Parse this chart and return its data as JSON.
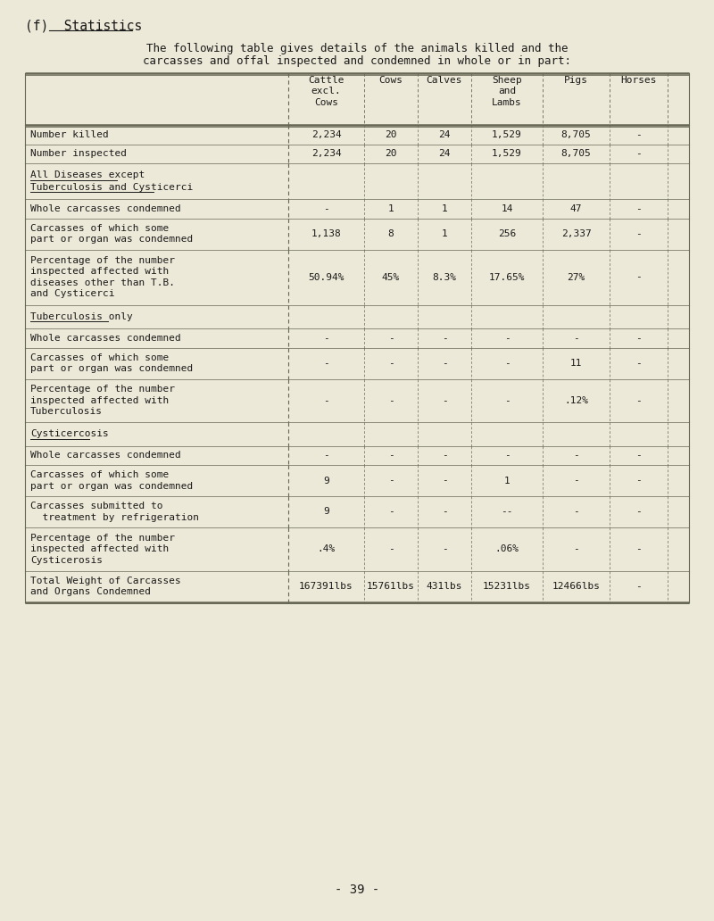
{
  "bg_color": "#ede9d8",
  "title_label": "(f)  Statistics",
  "subtitle_line1": "The following table gives details of the animals killed and the",
  "subtitle_line2": "carcasses and offal inspected and condemned in whole or in part:",
  "col_headers": [
    "Cattle\nexcl.\nCows",
    "Cows",
    "Calves",
    "Sheep\nand\nLambs",
    "Pigs",
    "Horses"
  ],
  "rows": [
    {
      "label": "Number killed",
      "nlines": 1,
      "underline": false,
      "section": false,
      "values": [
        "2,234",
        "20",
        "24",
        "1,529",
        "8,705",
        "-"
      ]
    },
    {
      "label": "Number inspected",
      "nlines": 1,
      "underline": false,
      "section": false,
      "values": [
        "2,234",
        "20",
        "24",
        "1,529",
        "8,705",
        "-"
      ]
    },
    {
      "label": "All Diseases except\nTuberculosis and Cysticerci",
      "nlines": 2,
      "underline": true,
      "section": true,
      "values": [
        "",
        "",
        "",
        "",
        "",
        ""
      ]
    },
    {
      "label": "Whole carcasses condemned",
      "nlines": 1,
      "underline": false,
      "section": false,
      "values": [
        "-",
        "1",
        "1",
        "14",
        "47",
        "-"
      ]
    },
    {
      "label": "Carcasses of which some\npart or organ was condemned",
      "nlines": 2,
      "underline": false,
      "section": false,
      "values": [
        "1,138",
        "8",
        "1",
        "256",
        "2,337",
        "-"
      ]
    },
    {
      "label": "Percentage of the number\ninspected affected with\ndiseases other than T.B.\nand Cysticerci",
      "nlines": 4,
      "underline": false,
      "section": false,
      "values": [
        "50.94%",
        "45%",
        "8.3%",
        "17.65%",
        "27%",
        "-"
      ]
    },
    {
      "label": "Tuberculosis only",
      "nlines": 1,
      "underline": true,
      "section": true,
      "values": [
        "",
        "",
        "",
        "",
        "",
        ""
      ]
    },
    {
      "label": "Whole carcasses condemned",
      "nlines": 1,
      "underline": false,
      "section": false,
      "values": [
        "-",
        "-",
        "-",
        "-",
        "-",
        "-"
      ]
    },
    {
      "label": "Carcasses of which some\npart or organ was condemned",
      "nlines": 2,
      "underline": false,
      "section": false,
      "values": [
        "-",
        "-",
        "-",
        "-",
        "11",
        "-"
      ]
    },
    {
      "label": "Percentage of the number\ninspected affected with\nTuberculosis",
      "nlines": 3,
      "underline": false,
      "section": false,
      "values": [
        "-",
        "-",
        "-",
        "-",
        ".12%",
        "-"
      ]
    },
    {
      "label": "Cysticercosis",
      "nlines": 1,
      "underline": true,
      "section": true,
      "values": [
        "",
        "",
        "",
        "",
        "",
        ""
      ]
    },
    {
      "label": "Whole carcasses condemned",
      "nlines": 1,
      "underline": false,
      "section": false,
      "values": [
        "-",
        "-",
        "-",
        "-",
        "-",
        "-"
      ]
    },
    {
      "label": "Carcasses of which some\npart or organ was condemned",
      "nlines": 2,
      "underline": false,
      "section": false,
      "values": [
        "9",
        "-",
        "-",
        "1",
        "-",
        "-"
      ]
    },
    {
      "label": "Carcasses submitted to\n  treatment by refrigeration",
      "nlines": 2,
      "underline": false,
      "section": false,
      "values": [
        "9",
        "-",
        "-",
        "--",
        "-",
        "-"
      ]
    },
    {
      "label": "Percentage of the number\ninspected affected with\nCysticerosis",
      "nlines": 3,
      "underline": false,
      "section": false,
      "values": [
        ".4%",
        "-",
        "-",
        ".06%",
        "-",
        "-"
      ]
    },
    {
      "label": "Total Weight of Carcasses\nand Organs Condemned",
      "nlines": 2,
      "underline": false,
      "section": false,
      "values": [
        "167391lbs",
        "15761lbs",
        "431lbs",
        "15231lbs",
        "12466lbs",
        "-"
      ]
    }
  ],
  "footer": "- 39 -",
  "text_color": "#1a1a1a",
  "line_color": "#666655",
  "font_size": 8.0,
  "header_font_size": 8.0,
  "title_font_size": 10.5,
  "subtitle_font_size": 9.0
}
